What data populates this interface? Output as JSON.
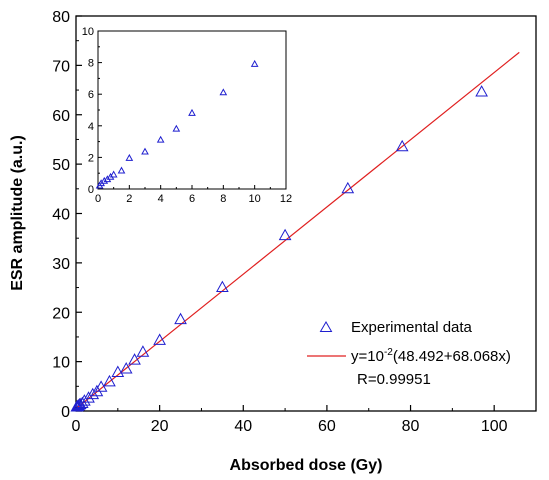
{
  "chart_data": [
    {
      "type": "scatter",
      "title": "",
      "xlabel": "Absorbed dose (Gy)",
      "ylabel": "ESR amplitude (a.u.)",
      "xlim": [
        0,
        110
      ],
      "ylim": [
        0,
        80
      ],
      "xticks": [
        0,
        20,
        40,
        60,
        80,
        100
      ],
      "yticks": [
        0,
        10,
        20,
        30,
        40,
        50,
        60,
        70,
        80
      ],
      "grid": false,
      "legend_position": "bottom-right",
      "series": [
        {
          "name": "Experimental data",
          "kind": "scatter",
          "marker": "triangle",
          "color": "#1f1fcf",
          "x": [
            0.2,
            0.4,
            0.6,
            0.8,
            1,
            1.5,
            2,
            3,
            4,
            5,
            6,
            8,
            10,
            12,
            14,
            16,
            20,
            25,
            35,
            50,
            65,
            78,
            97
          ],
          "y": [
            0.8,
            0.9,
            1.0,
            1.2,
            1.3,
            1.5,
            2.0,
            2.6,
            3.3,
            3.9,
            4.8,
            5.9,
            7.8,
            8.5,
            10.3,
            11.9,
            14.3,
            18.5,
            25.0,
            35.5,
            45.0,
            53.5,
            64.6
          ]
        },
        {
          "name": "y=10-2(48.492+68.068x)",
          "kind": "line",
          "color": "#e02020",
          "x": [
            0,
            106
          ],
          "y": [
            0.48492,
            72.637
          ]
        }
      ],
      "legend": {
        "marker_label": "Experimental data",
        "fit_label_prefix": "y=10",
        "fit_label_exponent": "-2",
        "fit_label_suffix": "(48.492+68.068x)",
        "r_label": "R=0.99951"
      }
    },
    {
      "type": "scatter",
      "title": "",
      "xlabel": "",
      "ylabel": "",
      "xlim": [
        0,
        12
      ],
      "ylim": [
        0,
        10
      ],
      "xticks": [
        0,
        2,
        4,
        6,
        8,
        10,
        12
      ],
      "yticks": [
        0,
        2,
        4,
        6,
        8,
        10
      ],
      "grid": false,
      "position": "top-left inset",
      "series": [
        {
          "marker": "triangle",
          "color": "#1f1fcf",
          "x": [
            0.1,
            0.2,
            0.4,
            0.6,
            0.8,
            1,
            1.5,
            2,
            3,
            4,
            5,
            6,
            8,
            10
          ],
          "y": [
            0.2,
            0.35,
            0.5,
            0.6,
            0.75,
            0.9,
            1.15,
            1.95,
            2.35,
            3.1,
            3.8,
            4.8,
            6.1,
            7.9
          ]
        }
      ]
    }
  ]
}
